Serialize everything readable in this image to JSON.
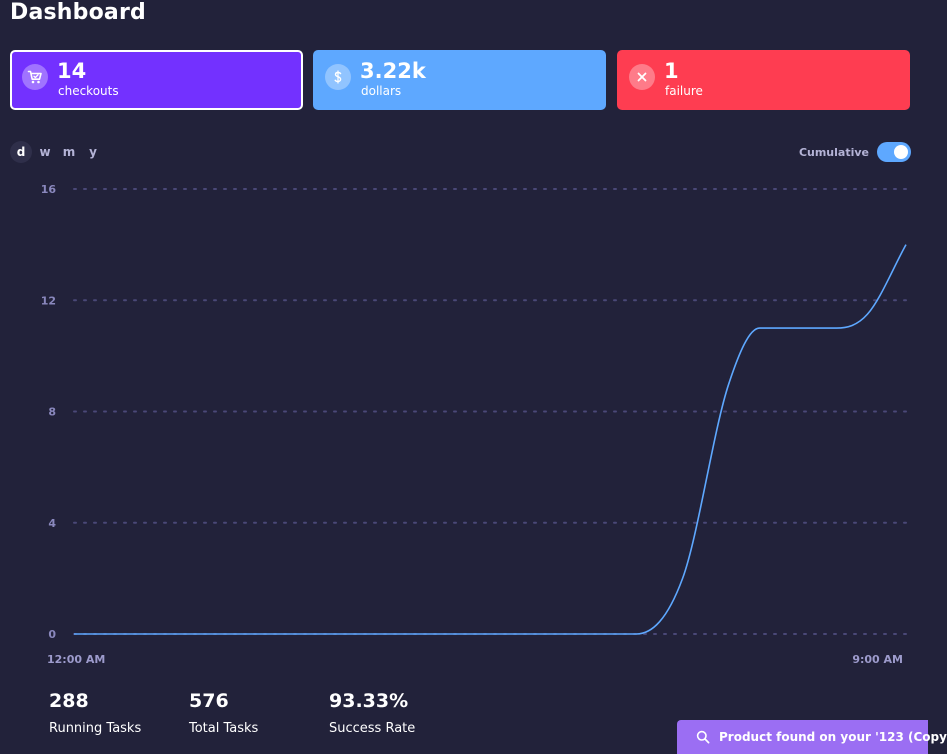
{
  "page": {
    "title": "Dashboard"
  },
  "cards": [
    {
      "icon": "cart-icon",
      "value": "14",
      "label": "checkouts",
      "color": "#7331ff"
    },
    {
      "icon": "dollar-icon",
      "value": "3.22k",
      "label": "dollars",
      "color": "#5ea8ff"
    },
    {
      "icon": "close-icon",
      "value": "1",
      "label": "failure",
      "color": "#fe3d51"
    }
  ],
  "range_tabs": {
    "items": [
      "d",
      "w",
      "m",
      "y"
    ],
    "selected": "d"
  },
  "cumulative": {
    "label": "Cumulative",
    "enabled": true,
    "color": "#5ea8ff"
  },
  "chart_data": {
    "type": "line",
    "title": "",
    "xlabel": "",
    "ylabel": "",
    "x_tick_labels": [
      "12:00 AM",
      "9:00 AM"
    ],
    "y_ticks": [
      "0",
      "4",
      "8",
      "12",
      "16"
    ],
    "ylim": [
      0,
      16
    ],
    "grid": true,
    "series": [
      {
        "color": "#5ea8ff",
        "points": [
          {
            "x": "12:00 AM",
            "y": 0
          },
          {
            "x": "6:05 AM",
            "y": 0
          },
          {
            "x": "6:35 AM",
            "y": 2
          },
          {
            "x": "7:05 AM",
            "y": 9
          },
          {
            "x": "7:25 AM",
            "y": 11
          },
          {
            "x": "8:15 AM",
            "y": 11
          },
          {
            "x": "8:35 AM",
            "y": 11.5
          },
          {
            "x": "9:00 AM",
            "y": 14
          }
        ]
      }
    ]
  },
  "stats": [
    {
      "value": "288",
      "label": "Running Tasks"
    },
    {
      "value": "576",
      "label": "Total Tasks"
    },
    {
      "value": "93.33%",
      "label": "Success Rate"
    }
  ],
  "toast": {
    "icon": "search-icon",
    "text": "Product found on your '123 (Copy",
    "color": "#9b6ef3"
  }
}
